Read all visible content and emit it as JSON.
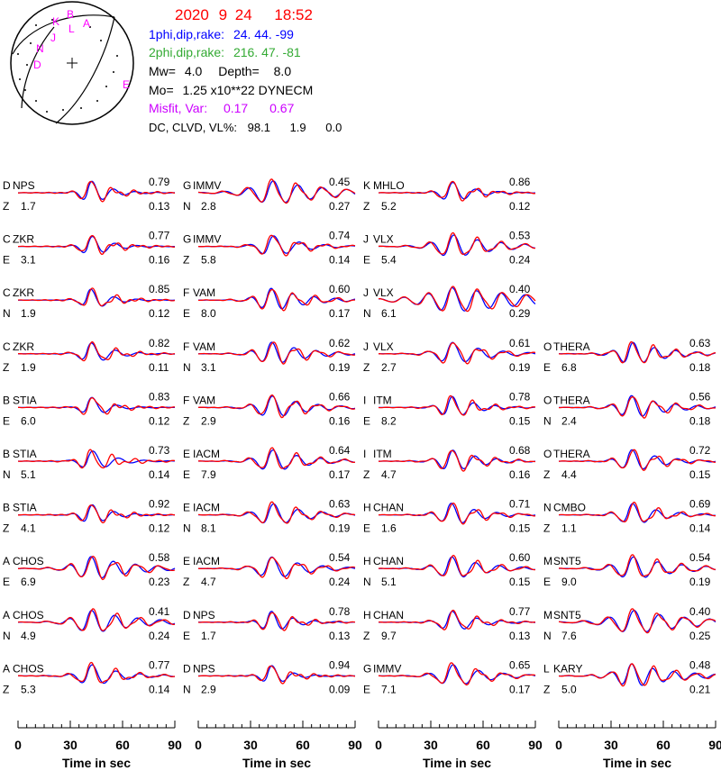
{
  "header": {
    "date": "2020",
    "month": "9",
    "day": "24",
    "time": "18:52",
    "np1_label": "1phi,dip,rake:",
    "np1_values": "24. 44.  -99",
    "np2_label": "2phi,dip,rake:",
    "np2_values": "216. 47.  -81",
    "mw_label": "Mw=",
    "mw_value": "4.0",
    "depth_label": "Depth=",
    "depth_value": "8.0",
    "mo_label": "Mo=",
    "mo_value": "1.25 x10**22 DYNECM",
    "misfit_label": "Misfit, Var:",
    "misfit_value": "0.17",
    "var_value": "0.67",
    "dc_label": "DC, CLVD, VL%:",
    "dc_value": "98.1",
    "clvd_value": "1.9",
    "vl_value": "0.0",
    "colors": {
      "date": "#ff0000",
      "np1": "#0000ff",
      "np2": "#33aa33",
      "misfit": "#cc00ff"
    }
  },
  "beachball": {
    "station_letters": [
      "K",
      "B",
      "L",
      "A",
      "J",
      "N",
      "D",
      "E"
    ],
    "letter_color": "#ff00ff"
  },
  "chart_data": {
    "type": "line",
    "title": "",
    "xlabel": "Time  in sec",
    "xlim": [
      0,
      90
    ],
    "xticks": [
      0,
      30,
      60,
      90
    ],
    "series_colors": {
      "observed": "#ff0000",
      "synthetic": "#0000ff"
    },
    "columns": [
      {
        "panels": [
          {
            "label": "D",
            "station": "NPS",
            "comp": "Z",
            "corr": "0.79",
            "shift": "1.7",
            "vr": "0.13",
            "seed": 11,
            "amp": 1.0,
            "decay": 0.09
          },
          {
            "label": "C",
            "station": "ZKR",
            "comp": "E",
            "corr": "0.77",
            "shift": "3.1",
            "vr": "0.16",
            "seed": 12,
            "amp": 0.9,
            "decay": 0.09
          },
          {
            "label": "C",
            "station": "ZKR",
            "comp": "N",
            "corr": "0.85",
            "shift": "1.9",
            "vr": "0.12",
            "seed": 13,
            "amp": 0.9,
            "decay": 0.09
          },
          {
            "label": "C",
            "station": "ZKR",
            "comp": "Z",
            "corr": "0.82",
            "shift": "1.9",
            "vr": "0.11",
            "seed": 14,
            "amp": 0.9,
            "decay": 0.08
          },
          {
            "label": "B",
            "station": "STIA",
            "comp": "E",
            "corr": "0.83",
            "shift": "6.0",
            "vr": "0.12",
            "seed": 15,
            "amp": 0.9,
            "decay": 0.1
          },
          {
            "label": "B",
            "station": "STIA",
            "comp": "N",
            "corr": "0.73",
            "shift": "5.1",
            "vr": "0.14",
            "seed": 16,
            "amp": 0.9,
            "decay": 0.08
          },
          {
            "label": "B",
            "station": "STIA",
            "comp": "Z",
            "corr": "0.92",
            "shift": "4.1",
            "vr": "0.12",
            "seed": 17,
            "amp": 0.9,
            "decay": 0.09
          },
          {
            "label": "A",
            "station": "CHOS",
            "comp": "E",
            "corr": "0.58",
            "shift": "6.9",
            "vr": "0.23",
            "seed": 18,
            "amp": 0.9,
            "decay": 0.04
          },
          {
            "label": "A",
            "station": "CHOS",
            "comp": "N",
            "corr": "0.41",
            "shift": "4.9",
            "vr": "0.24",
            "seed": 19,
            "amp": 0.9,
            "decay": 0.04
          },
          {
            "label": "A",
            "station": "CHOS",
            "comp": "Z",
            "corr": "0.77",
            "shift": "5.3",
            "vr": "0.14",
            "seed": 20,
            "amp": 0.9,
            "decay": 0.06
          }
        ]
      },
      {
        "panels": [
          {
            "label": "G",
            "station": "IMMV",
            "comp": "N",
            "corr": "0.45",
            "shift": "2.8",
            "vr": "0.27",
            "seed": 21,
            "amp": 0.9,
            "decay": 0.03
          },
          {
            "label": "G",
            "station": "IMMV",
            "comp": "Z",
            "corr": "0.74",
            "shift": "5.8",
            "vr": "0.14",
            "seed": 22,
            "amp": 0.9,
            "decay": 0.06
          },
          {
            "label": "F",
            "station": "VAM",
            "comp": "E",
            "corr": "0.60",
            "shift": "8.0",
            "vr": "0.17",
            "seed": 23,
            "amp": 0.9,
            "decay": 0.05
          },
          {
            "label": "F",
            "station": "VAM",
            "comp": "N",
            "corr": "0.62",
            "shift": "3.1",
            "vr": "0.19",
            "seed": 24,
            "amp": 0.9,
            "decay": 0.05
          },
          {
            "label": "F",
            "station": "VAM",
            "comp": "Z",
            "corr": "0.66",
            "shift": "2.9",
            "vr": "0.16",
            "seed": 25,
            "amp": 0.9,
            "decay": 0.05
          },
          {
            "label": "E",
            "station": "IACM",
            "comp": "E",
            "corr": "0.64",
            "shift": "7.9",
            "vr": "0.17",
            "seed": 26,
            "amp": 0.9,
            "decay": 0.05
          },
          {
            "label": "E",
            "station": "IACM",
            "comp": "N",
            "corr": "0.63",
            "shift": "8.1",
            "vr": "0.19",
            "seed": 27,
            "amp": 0.9,
            "decay": 0.05
          },
          {
            "label": "E",
            "station": "IACM",
            "comp": "Z",
            "corr": "0.54",
            "shift": "4.7",
            "vr": "0.24",
            "seed": 28,
            "amp": 0.9,
            "decay": 0.05
          },
          {
            "label": "D",
            "station": "NPS",
            "comp": "E",
            "corr": "0.78",
            "shift": "1.7",
            "vr": "0.13",
            "seed": 29,
            "amp": 0.9,
            "decay": 0.08
          },
          {
            "label": "D",
            "station": "NPS",
            "comp": "N",
            "corr": "0.94",
            "shift": "2.9",
            "vr": "0.09",
            "seed": 30,
            "amp": 0.9,
            "decay": 0.1
          }
        ]
      },
      {
        "panels": [
          {
            "label": "K",
            "station": "MHLO",
            "comp": "Z",
            "corr": "0.86",
            "shift": "5.2",
            "vr": "0.12",
            "seed": 31,
            "amp": 0.9,
            "decay": 0.08
          },
          {
            "label": "J",
            "station": "VLX",
            "comp": "E",
            "corr": "0.53",
            "shift": "5.4",
            "vr": "0.24",
            "seed": 32,
            "amp": 0.9,
            "decay": 0.04
          },
          {
            "label": "J",
            "station": "VLX",
            "comp": "N",
            "corr": "0.40",
            "shift": "6.1",
            "vr": "0.29",
            "seed": 33,
            "amp": 0.9,
            "decay": 0.02
          },
          {
            "label": "J",
            "station": "VLX",
            "comp": "Z",
            "corr": "0.61",
            "shift": "2.7",
            "vr": "0.19",
            "seed": 34,
            "amp": 0.9,
            "decay": 0.05
          },
          {
            "label": "I",
            "station": "ITM",
            "comp": "E",
            "corr": "0.78",
            "shift": "8.2",
            "vr": "0.15",
            "seed": 35,
            "amp": 0.9,
            "decay": 0.07
          },
          {
            "label": "I",
            "station": "ITM",
            "comp": "Z",
            "corr": "0.68",
            "shift": "4.7",
            "vr": "0.16",
            "seed": 36,
            "amp": 0.9,
            "decay": 0.06
          },
          {
            "label": "H",
            "station": "CHAN",
            "comp": "E",
            "corr": "0.71",
            "shift": "1.6",
            "vr": "0.15",
            "seed": 37,
            "amp": 0.9,
            "decay": 0.06
          },
          {
            "label": "H",
            "station": "CHAN",
            "comp": "N",
            "corr": "0.60",
            "shift": "5.1",
            "vr": "0.15",
            "seed": 38,
            "amp": 0.9,
            "decay": 0.05
          },
          {
            "label": "H",
            "station": "CHAN",
            "comp": "Z",
            "corr": "0.77",
            "shift": "9.7",
            "vr": "0.13",
            "seed": 39,
            "amp": 0.9,
            "decay": 0.07
          },
          {
            "label": "G",
            "station": "IMMV",
            "comp": "E",
            "corr": "0.65",
            "shift": "7.1",
            "vr": "0.17",
            "seed": 40,
            "amp": 0.9,
            "decay": 0.05
          }
        ]
      },
      {
        "panels": [
          null,
          null,
          null,
          {
            "label": "O",
            "station": "THERA",
            "comp": "E",
            "corr": "0.63",
            "shift": "6.8",
            "vr": "0.18",
            "seed": 41,
            "amp": 0.9,
            "decay": 0.05
          },
          {
            "label": "O",
            "station": "THERA",
            "comp": "N",
            "corr": "0.56",
            "shift": "2.4",
            "vr": "0.18",
            "seed": 42,
            "amp": 0.9,
            "decay": 0.05
          },
          {
            "label": "O",
            "station": "THERA",
            "comp": "Z",
            "corr": "0.72",
            "shift": "4.4",
            "vr": "0.15",
            "seed": 43,
            "amp": 0.9,
            "decay": 0.06
          },
          {
            "label": "N",
            "station": "CMBO",
            "comp": "Z",
            "corr": "0.69",
            "shift": "1.1",
            "vr": "0.14",
            "seed": 44,
            "amp": 0.9,
            "decay": 0.06
          },
          {
            "label": "M",
            "station": "SNT5",
            "comp": "E",
            "corr": "0.54",
            "shift": "9.0",
            "vr": "0.19",
            "seed": 45,
            "amp": 0.9,
            "decay": 0.04
          },
          {
            "label": "M",
            "station": "SNT5",
            "comp": "N",
            "corr": "0.40",
            "shift": "7.6",
            "vr": "0.25",
            "seed": 46,
            "amp": 0.9,
            "decay": 0.03
          },
          {
            "label": "L",
            "station": "KARY",
            "comp": "Z",
            "corr": "0.48",
            "shift": "5.0",
            "vr": "0.21",
            "seed": 47,
            "amp": 0.9,
            "decay": 0.04
          }
        ]
      }
    ]
  }
}
